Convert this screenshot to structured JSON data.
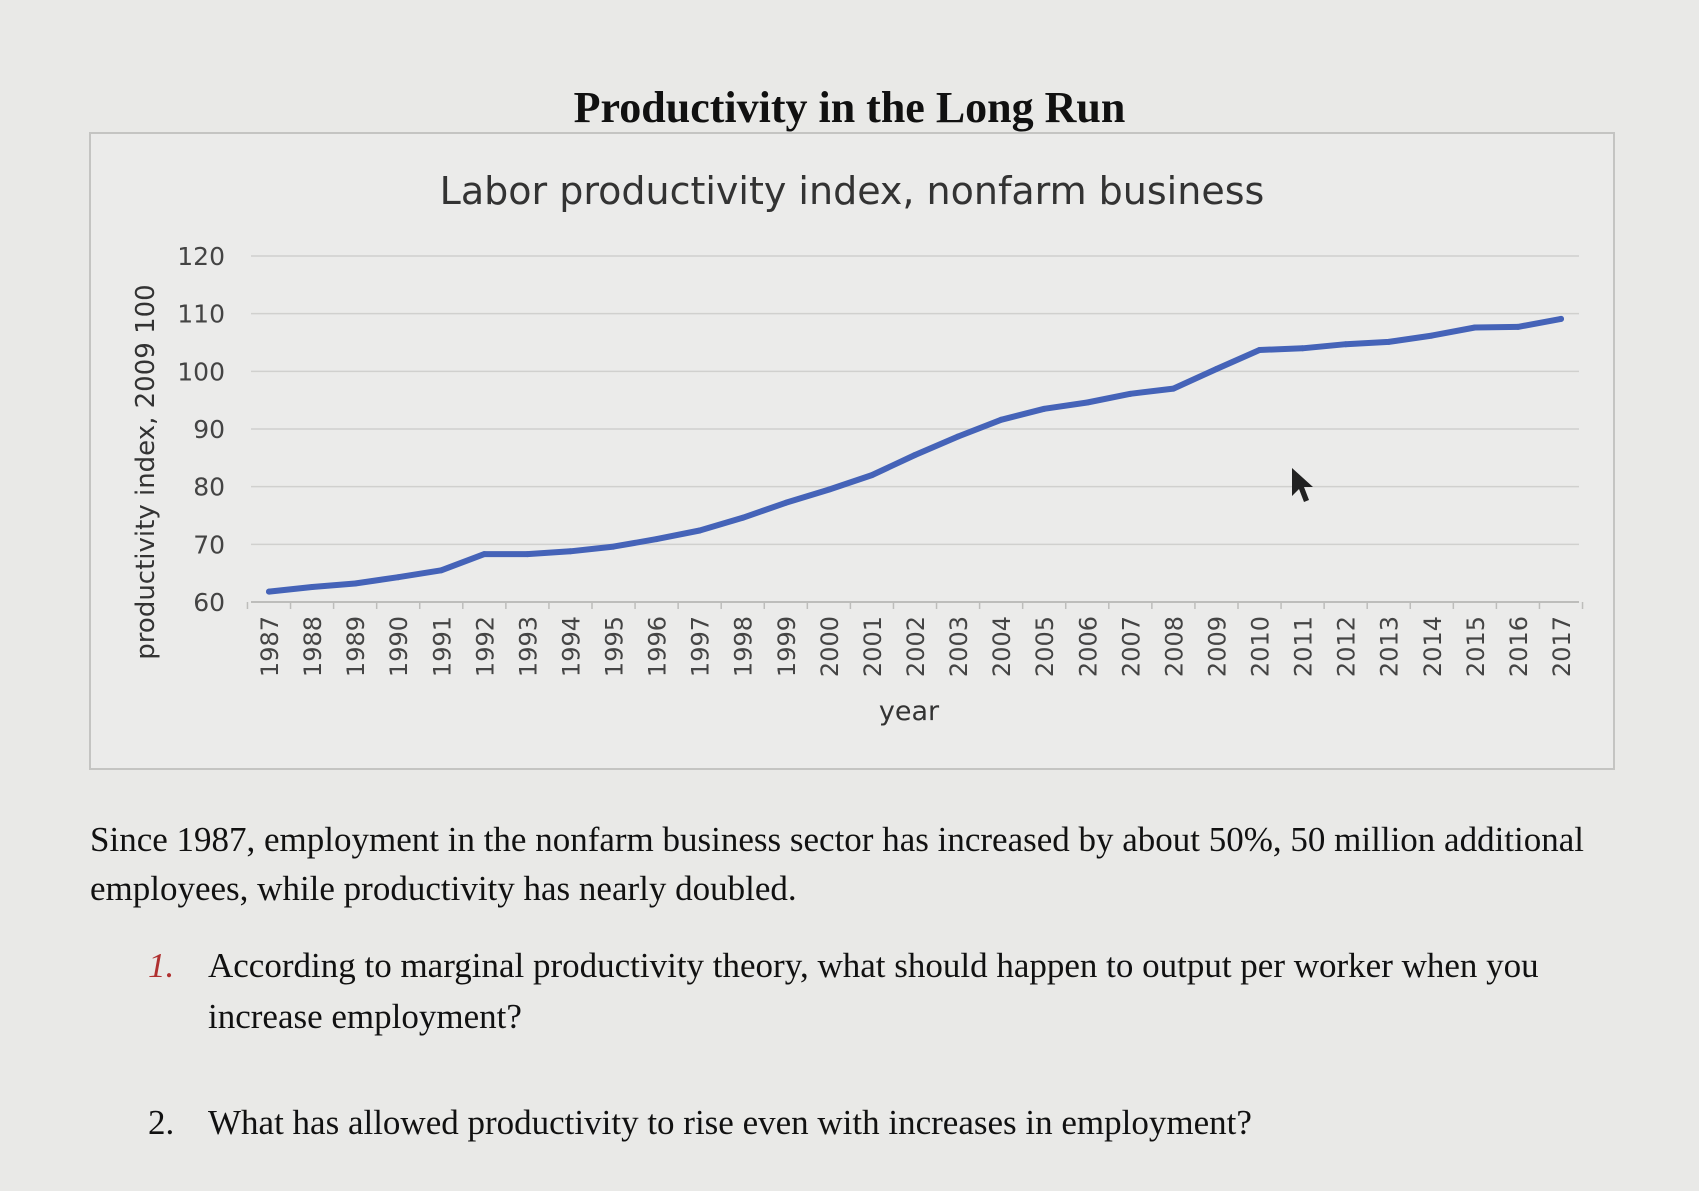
{
  "page": {
    "title": "Productivity in the Long Run",
    "paragraph": "Since 1987, employment in the nonfarm business sector has increased by about 50%, 50 million additional employees, while productivity has nearly doubled.",
    "questions": [
      {
        "number": "1.",
        "text": "According to marginal productivity theory, what should happen to output per worker when you increase employment?"
      },
      {
        "number": "2.",
        "text": "What has allowed productivity to rise even with increases in employment?"
      }
    ]
  },
  "chart_data": {
    "type": "line",
    "title": "Labor productivity index, nonfarm business",
    "xlabel": "year",
    "ylabel": "productivity index, 2009 100",
    "ylim": [
      60,
      120
    ],
    "yticks": [
      60,
      70,
      80,
      90,
      100,
      110,
      120
    ],
    "grid": true,
    "x": [
      "1987",
      "1988",
      "1989",
      "1990",
      "1991",
      "1992",
      "1993",
      "1994",
      "1995",
      "1996",
      "1997",
      "1998",
      "1999",
      "2000",
      "2001",
      "2002",
      "2003",
      "2004",
      "2005",
      "2006",
      "2007",
      "2008",
      "2009",
      "2010",
      "2011",
      "2012",
      "2013",
      "2014",
      "2015",
      "2016",
      "2017"
    ],
    "series": [
      {
        "color": "#4563b8",
        "values": [
          61.8,
          62.6,
          63.2,
          64.3,
          65.5,
          68.3,
          68.3,
          68.8,
          69.6,
          70.9,
          72.4,
          74.6,
          77.2,
          79.5,
          82.0,
          85.5,
          88.7,
          91.6,
          93.5,
          94.6,
          96.1,
          97.0,
          100.4,
          103.7,
          104.0,
          104.7,
          105.1,
          106.2,
          107.6,
          107.7,
          109.1
        ]
      }
    ]
  }
}
